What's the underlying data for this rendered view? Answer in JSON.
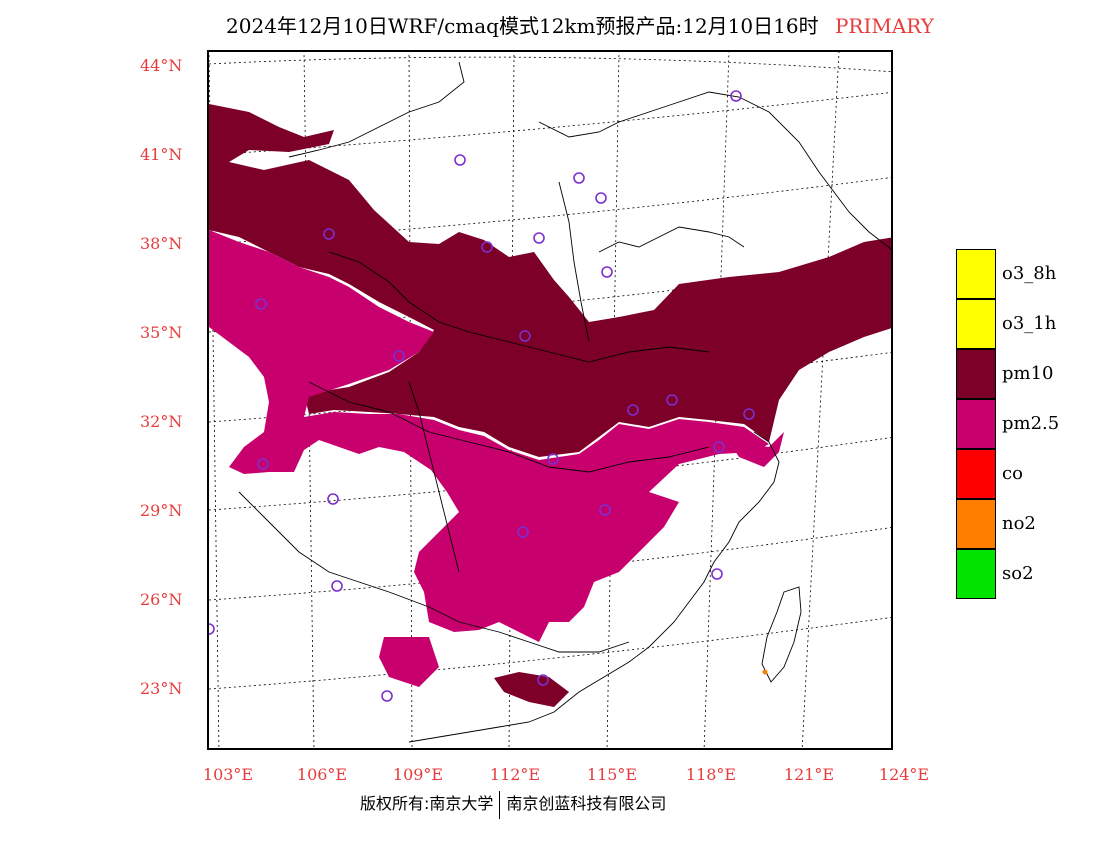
{
  "title": {
    "main": "2024年12月10日WRF/cmaq模式12km预报产品:12月10日16时",
    "tag": "PRIMARY"
  },
  "axes": {
    "lat_labels": [
      "44°N",
      "41°N",
      "38°N",
      "35°N",
      "32°N",
      "29°N",
      "26°N",
      "23°N"
    ],
    "lon_labels": [
      "103°E",
      "106°E",
      "109°E",
      "112°E",
      "115°E",
      "118°E",
      "121°E",
      "124°E"
    ]
  },
  "legend": [
    {
      "label": "o3_8h",
      "color": "#ffff00"
    },
    {
      "label": "o3_1h",
      "color": "#ffff00"
    },
    {
      "label": "pm10",
      "color": "#7d0028"
    },
    {
      "label": "pm2.5",
      "color": "#c8006e"
    },
    {
      "label": "co",
      "color": "#ff0000"
    },
    {
      "label": "no2",
      "color": "#ff7e00"
    },
    {
      "label": "so2",
      "color": "#00e400"
    }
  ],
  "colors": {
    "pm10": "#7d0028",
    "pm25": "#c8006e",
    "station": "#7b2fd0",
    "label": "#e83c3c"
  },
  "footer": {
    "left": "版权所有:南京大学",
    "right": "南京创蓝科技有限公司"
  }
}
